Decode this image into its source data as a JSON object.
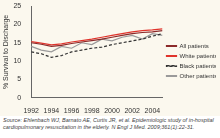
{
  "chart_data": {
    "type": "line",
    "y_label": "% Survival to Discharge",
    "annotations": [
      "Source: Ehlenbach WJ, Barnato AE, Curtis JR, et al. Epidemiologic study of in-hospital cardiopulmonary resuscitation in the elderly. N Engl J Med. 2009;361(1):22-31."
    ],
    "x": [
      1992,
      1993,
      1994,
      1995,
      1996,
      1997,
      1998,
      1999,
      2000,
      2001,
      2002,
      2003,
      2004,
      2005
    ],
    "xlim": [
      1992,
      2005
    ],
    "xticks": [
      1992,
      1994,
      1996,
      1998,
      2000,
      2002,
      2004
    ],
    "ylim": [
      0,
      25
    ],
    "yticks": [
      0,
      5,
      10,
      15,
      20,
      25
    ],
    "grid": false,
    "legend": "right",
    "series": [
      {
        "name": "All patients",
        "color": "#8b2a2a",
        "line_style": "solid",
        "marker": "none",
        "values": [
          15.0,
          14.6,
          14.0,
          14.3,
          14.8,
          15.2,
          15.6,
          16.0,
          16.5,
          17.0,
          17.5,
          17.8,
          18.0,
          18.3
        ]
      },
      {
        "name": "White patients",
        "color": "#e0342c",
        "line_style": "solid",
        "marker": "none",
        "values": [
          15.3,
          14.9,
          14.4,
          14.7,
          15.2,
          15.6,
          16.0,
          16.5,
          17.0,
          17.5,
          18.0,
          18.3,
          18.5,
          18.8
        ]
      },
      {
        "name": "Black patients",
        "color": "#333333",
        "line_style": "dashed",
        "marker": "none",
        "values": [
          12.5,
          12.0,
          11.0,
          11.5,
          12.5,
          13.0,
          13.5,
          13.8,
          14.5,
          15.0,
          15.5,
          16.0,
          16.8,
          17.5
        ]
      },
      {
        "name": "Other patients",
        "color": "#9a9a9a",
        "line_style": "solid",
        "marker": "none",
        "values": [
          14.0,
          13.0,
          12.5,
          14.0,
          13.5,
          15.0,
          14.5,
          16.0,
          15.5,
          16.5,
          17.0,
          16.0,
          17.5,
          17.0
        ]
      }
    ]
  }
}
